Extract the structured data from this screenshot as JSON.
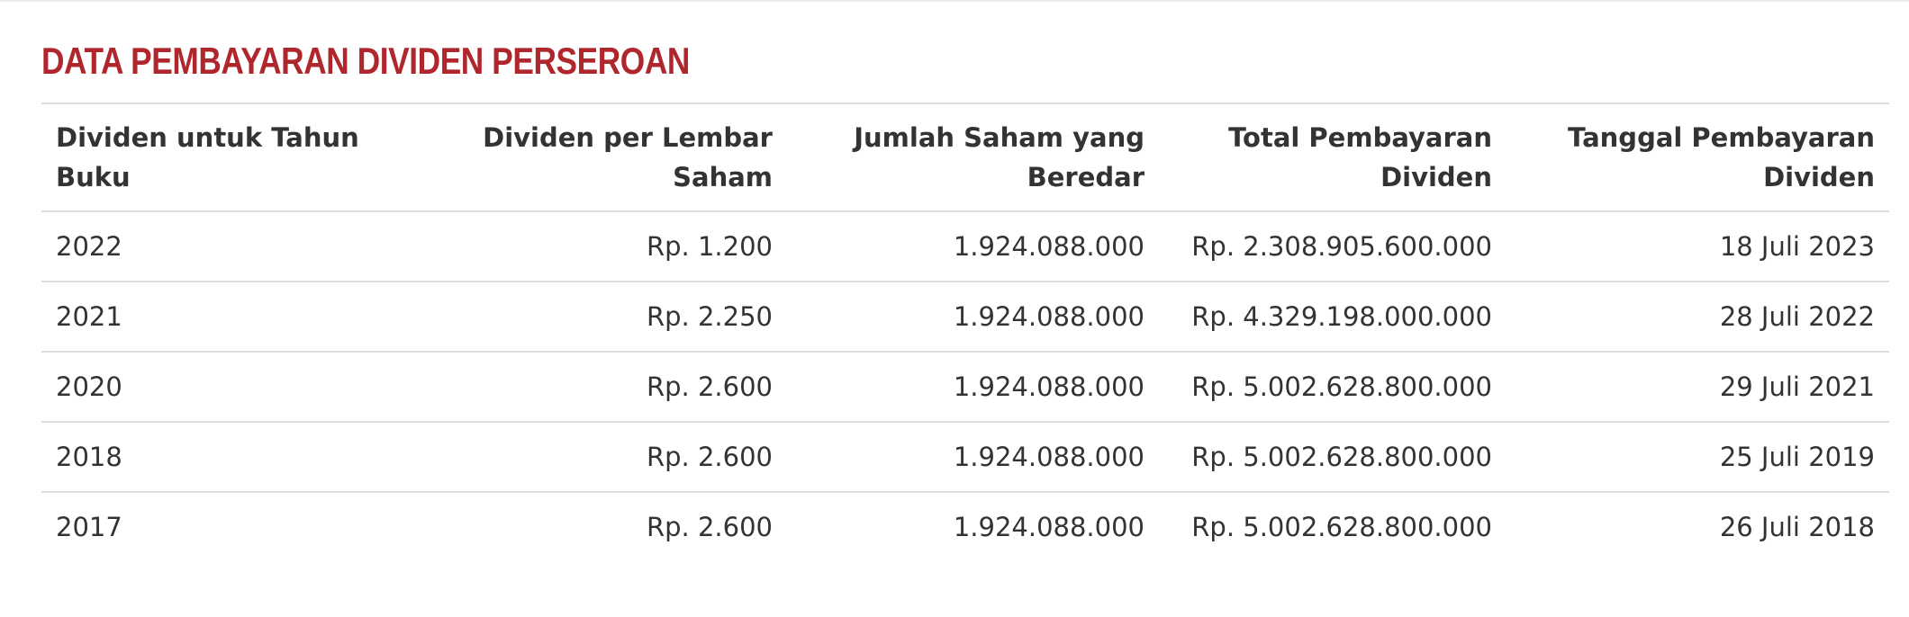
{
  "title": "DATA PEMBAYARAN DIVIDEN PERSEROAN",
  "table": {
    "headers": [
      "Dividen untuk Tahun Buku",
      "Dividen per Lembar Saham",
      "Jumlah Saham yang Beredar",
      "Total Pembayaran Dividen",
      "Tanggal Pembayaran Dividen"
    ],
    "rows": [
      [
        "2022",
        "Rp. 1.200",
        "1.924.088.000",
        "Rp. 2.308.905.600.000",
        "18 Juli 2023"
      ],
      [
        "2021",
        "Rp. 2.250",
        "1.924.088.000",
        "Rp. 4.329.198.000.000",
        "28 Juli 2022"
      ],
      [
        "2020",
        "Rp. 2.600",
        "1.924.088.000",
        "Rp. 5.002.628.800.000",
        "29 Juli 2021"
      ],
      [
        "2018",
        "Rp. 2.600",
        "1.924.088.000",
        "Rp. 5.002.628.800.000",
        "25 Juli 2019"
      ],
      [
        "2017",
        "Rp. 2.600",
        "1.924.088.000",
        "Rp. 5.002.628.800.000",
        "26 Juli 2018"
      ]
    ]
  },
  "colors": {
    "title": "#b0262d",
    "text": "#333333",
    "rule": "#dedede"
  }
}
